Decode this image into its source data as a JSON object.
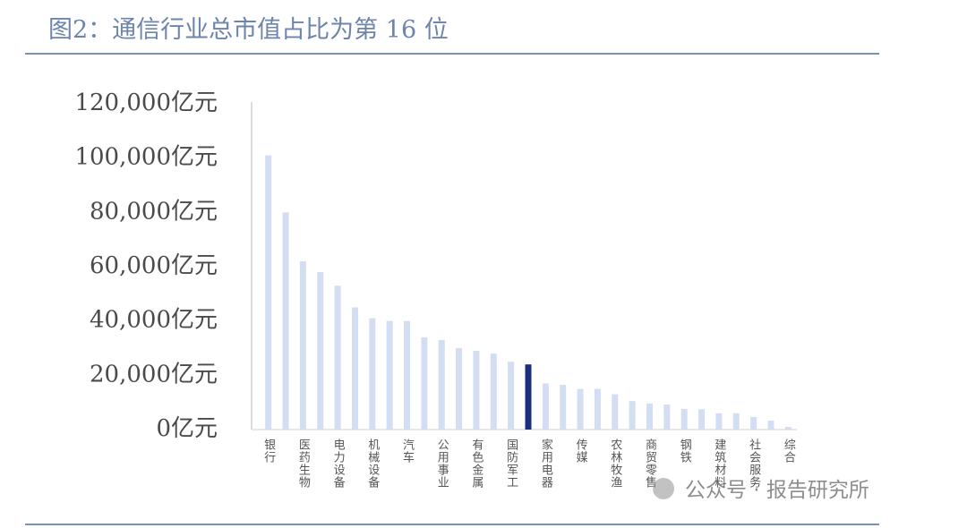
{
  "chart_data": {
    "type": "bar",
    "title": "图2：通信行业总市值占比为第 16 位",
    "categories": [
      "银行",
      null,
      "医药生物",
      null,
      "电力设备",
      null,
      "机械设备",
      null,
      "汽车",
      null,
      "公用事业",
      null,
      "有色金属",
      null,
      "国防军工",
      null,
      "家用电器",
      null,
      "传媒",
      null,
      "农林牧渔",
      null,
      "商贸零售",
      null,
      "钢铁",
      null,
      "建筑材料",
      null,
      "社会服务",
      null,
      "综合"
    ],
    "values": [
      101000,
      80000,
      62000,
      58000,
      53000,
      45000,
      41000,
      40000,
      40000,
      34000,
      33000,
      30000,
      29000,
      28000,
      25000,
      24000,
      17000,
      16500,
      15000,
      15000,
      13000,
      10500,
      9600,
      9200,
      7600,
      7500,
      6000,
      6000,
      4600,
      3300,
      1000
    ],
    "colors": [
      "#d3def2",
      "#d3def2",
      "#d3def2",
      "#d3def2",
      "#d3def2",
      "#d3def2",
      "#d3def2",
      "#d3def2",
      "#d3def2",
      "#d3def2",
      "#d3def2",
      "#d3def2",
      "#d3def2",
      "#d3def2",
      "#d3def2",
      "#1b2f7c",
      "#d3def2",
      "#d3def2",
      "#d3def2",
      "#d3def2",
      "#d3def2",
      "#d3def2",
      "#d3def2",
      "#d3def2",
      "#d3def2",
      "#d3def2",
      "#d3def2",
      "#d3def2",
      "#d3def2",
      "#d3def2",
      "#d3def2"
    ],
    "ylim": [
      0,
      120000
    ],
    "yticks": [
      {
        "value": 0,
        "label": "0亿元"
      },
      {
        "value": 20000,
        "label": "20,000亿元"
      },
      {
        "value": 40000,
        "label": "40,000亿元"
      },
      {
        "value": 60000,
        "label": "60,000亿元"
      },
      {
        "value": 80000,
        "label": "80,000亿元"
      },
      {
        "value": 100000,
        "label": "100,000亿元"
      },
      {
        "value": 120000,
        "label": "120,000亿元"
      }
    ],
    "grid": false,
    "watermark": "公众号 · 报告研究所"
  }
}
